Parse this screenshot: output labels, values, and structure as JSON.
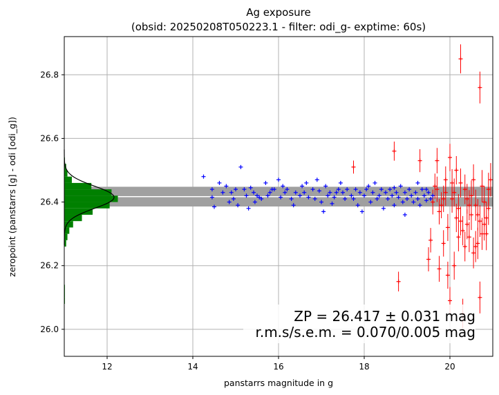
{
  "chart_data": {
    "type": "scatter",
    "title": "Ag exposure",
    "subtitle": "(obsid: 20250208T050223.1 - filter: odi_g- exptime: 60s)",
    "xlabel": "panstarrs magnitude in g",
    "ylabel": "zeropoint (panstarrs [g] - odi [odi_g])",
    "xlim": [
      11.0,
      21.0
    ],
    "ylim": [
      25.915,
      26.92
    ],
    "x_ticks": [
      12,
      14,
      16,
      18,
      20
    ],
    "y_ticks": [
      26.0,
      26.2,
      26.4,
      26.6,
      26.8
    ],
    "grid": true,
    "zeropoint": 26.417,
    "zeropoint_band": [
      26.386,
      26.448
    ],
    "annotations": {
      "zp_text": "ZP = 26.417 ± 0.031 mag",
      "rms_text": "r.m.s/s.e.m. = 0.070/0.005 mag"
    },
    "colors": {
      "used": "#0000ff",
      "rejected": "#ff0000",
      "histogram": "#008000",
      "band": "#a0a0a0",
      "zp_line": "#ffffff",
      "gaussian": "#000000",
      "grid": "#b0b0b0"
    },
    "histogram": {
      "bin_edges": [
        25.92,
        25.94,
        25.96,
        25.98,
        26.0,
        26.02,
        26.04,
        26.06,
        26.08,
        26.1,
        26.12,
        26.14,
        26.16,
        26.18,
        26.2,
        26.22,
        26.24,
        26.26,
        26.28,
        26.3,
        26.32,
        26.34,
        26.36,
        26.38,
        26.4,
        26.42,
        26.44,
        26.46,
        26.48,
        26.5,
        26.52,
        26.54
      ],
      "counts": [
        0,
        0,
        0,
        0,
        0,
        0,
        0,
        0,
        1,
        1,
        1,
        0,
        0,
        0,
        0,
        0,
        0,
        3,
        5,
        8,
        14,
        28,
        45,
        72,
        85,
        75,
        43,
        12,
        5,
        3,
        1,
        0
      ],
      "max_width_mag": 1.25,
      "gauss_mu": 26.415,
      "gauss_sigma": 0.035,
      "gauss_peak": 79
    },
    "series": [
      {
        "name": "",
        "color": "used",
        "points": [
          [
            14.25,
            26.48
          ],
          [
            14.45,
            26.44
          ],
          [
            14.45,
            26.415
          ],
          [
            14.5,
            26.385
          ],
          [
            14.62,
            26.46
          ],
          [
            14.7,
            26.43
          ],
          [
            14.78,
            26.45
          ],
          [
            14.85,
            26.4
          ],
          [
            14.9,
            26.43
          ],
          [
            14.95,
            26.41
          ],
          [
            15.0,
            26.44
          ],
          [
            15.05,
            26.39
          ],
          [
            15.12,
            26.51
          ],
          [
            15.2,
            26.44
          ],
          [
            15.25,
            26.42
          ],
          [
            15.3,
            26.38
          ],
          [
            15.35,
            26.445
          ],
          [
            15.42,
            26.43
          ],
          [
            15.5,
            26.42
          ],
          [
            15.55,
            26.415
          ],
          [
            15.6,
            26.41
          ],
          [
            15.7,
            26.46
          ],
          [
            15.75,
            26.42
          ],
          [
            15.8,
            26.43
          ],
          [
            15.85,
            26.44
          ],
          [
            15.9,
            26.44
          ],
          [
            16.0,
            26.47
          ],
          [
            16.05,
            26.415
          ],
          [
            16.1,
            26.45
          ],
          [
            16.15,
            26.43
          ],
          [
            16.2,
            26.44
          ],
          [
            16.3,
            26.41
          ],
          [
            16.4,
            26.43
          ],
          [
            16.5,
            26.42
          ],
          [
            16.55,
            26.45
          ],
          [
            16.6,
            26.43
          ],
          [
            16.7,
            26.415
          ],
          [
            16.8,
            26.44
          ],
          [
            16.85,
            26.41
          ],
          [
            16.9,
            26.47
          ],
          [
            16.95,
            26.435
          ],
          [
            17.0,
            26.4
          ],
          [
            17.05,
            26.37
          ],
          [
            17.1,
            26.45
          ],
          [
            17.15,
            26.42
          ],
          [
            17.2,
            26.43
          ],
          [
            17.3,
            26.415
          ],
          [
            17.35,
            26.43
          ],
          [
            17.4,
            26.44
          ],
          [
            17.45,
            26.46
          ],
          [
            17.5,
            26.43
          ],
          [
            17.55,
            26.41
          ],
          [
            17.6,
            26.44
          ],
          [
            17.7,
            26.42
          ],
          [
            17.75,
            26.41
          ],
          [
            17.8,
            26.44
          ],
          [
            17.85,
            26.39
          ],
          [
            17.9,
            26.43
          ],
          [
            18.0,
            26.42
          ],
          [
            18.05,
            26.44
          ],
          [
            18.1,
            26.45
          ],
          [
            18.15,
            26.4
          ],
          [
            18.2,
            26.43
          ],
          [
            18.25,
            26.46
          ],
          [
            18.3,
            26.41
          ],
          [
            18.35,
            26.42
          ],
          [
            18.4,
            26.44
          ],
          [
            18.45,
            26.38
          ],
          [
            18.5,
            26.43
          ],
          [
            18.55,
            26.41
          ],
          [
            18.6,
            26.44
          ],
          [
            18.65,
            26.42
          ],
          [
            18.7,
            26.39
          ],
          [
            18.75,
            26.43
          ],
          [
            18.8,
            26.415
          ],
          [
            18.85,
            26.45
          ],
          [
            18.9,
            26.4
          ],
          [
            18.95,
            26.43
          ],
          [
            19.0,
            26.41
          ],
          [
            19.05,
            26.44
          ],
          [
            19.1,
            26.42
          ],
          [
            19.15,
            26.4
          ],
          [
            19.2,
            26.43
          ],
          [
            19.25,
            26.41
          ],
          [
            19.3,
            26.39
          ],
          [
            19.35,
            26.44
          ],
          [
            19.4,
            26.42
          ],
          [
            19.45,
            26.405
          ],
          [
            19.5,
            26.43
          ],
          [
            19.55,
            26.41
          ],
          [
            19.6,
            26.42
          ],
          [
            18.95,
            26.36
          ],
          [
            19.25,
            26.46
          ],
          [
            16.35,
            26.39
          ],
          [
            15.45,
            26.4
          ],
          [
            17.95,
            26.37
          ],
          [
            18.7,
            26.445
          ],
          [
            17.25,
            26.395
          ],
          [
            16.65,
            26.46
          ],
          [
            19.45,
            26.44
          ]
        ]
      },
      {
        "name": "",
        "color": "rejected",
        "points": [
          [
            17.75,
            26.51
          ],
          [
            18.7,
            26.56
          ],
          [
            19.3,
            26.53
          ],
          [
            18.8,
            26.15
          ],
          [
            19.5,
            26.22
          ],
          [
            19.7,
            26.53
          ],
          [
            19.85,
            26.27
          ],
          [
            20.0,
            26.54
          ],
          [
            20.15,
            26.5
          ],
          [
            20.25,
            26.85
          ],
          [
            20.7,
            26.76
          ],
          [
            19.75,
            26.19
          ],
          [
            19.95,
            26.17
          ],
          [
            20.1,
            26.2
          ],
          [
            20.6,
            26.26
          ],
          [
            20.75,
            26.3
          ],
          [
            20.85,
            26.35
          ],
          [
            20.5,
            26.42
          ],
          [
            20.35,
            26.44
          ],
          [
            20.2,
            26.38
          ],
          [
            20.05,
            26.41
          ],
          [
            19.9,
            26.43
          ],
          [
            19.8,
            26.39
          ],
          [
            19.65,
            26.45
          ],
          [
            20.4,
            26.33
          ],
          [
            20.55,
            26.47
          ],
          [
            20.65,
            26.36
          ],
          [
            20.8,
            26.4
          ],
          [
            20.9,
            26.44
          ],
          [
            20.3,
            26.31
          ],
          [
            20.45,
            26.29
          ],
          [
            20.15,
            26.35
          ],
          [
            19.95,
            26.32
          ],
          [
            20.7,
            26.34
          ],
          [
            20.25,
            26.46
          ],
          [
            20.6,
            26.39
          ],
          [
            20.85,
            26.3
          ],
          [
            20.0,
            26.09
          ],
          [
            20.3,
            26.05
          ],
          [
            20.7,
            26.1
          ],
          [
            19.55,
            26.28
          ],
          [
            19.9,
            26.47
          ],
          [
            20.5,
            26.36
          ],
          [
            20.95,
            26.47
          ],
          [
            20.1,
            26.43
          ],
          [
            19.75,
            26.37
          ],
          [
            19.6,
            26.4
          ],
          [
            20.2,
            26.29
          ],
          [
            20.4,
            26.41
          ],
          [
            20.8,
            26.33
          ],
          [
            20.65,
            26.27
          ],
          [
            20.35,
            26.26
          ],
          [
            19.85,
            26.41
          ],
          [
            20.55,
            26.24
          ],
          [
            20.9,
            26.38
          ],
          [
            20.05,
            26.46
          ],
          [
            19.7,
            26.44
          ],
          [
            20.25,
            26.34
          ],
          [
            20.75,
            26.45
          ],
          [
            20.45,
            26.39
          ]
        ]
      }
    ]
  }
}
